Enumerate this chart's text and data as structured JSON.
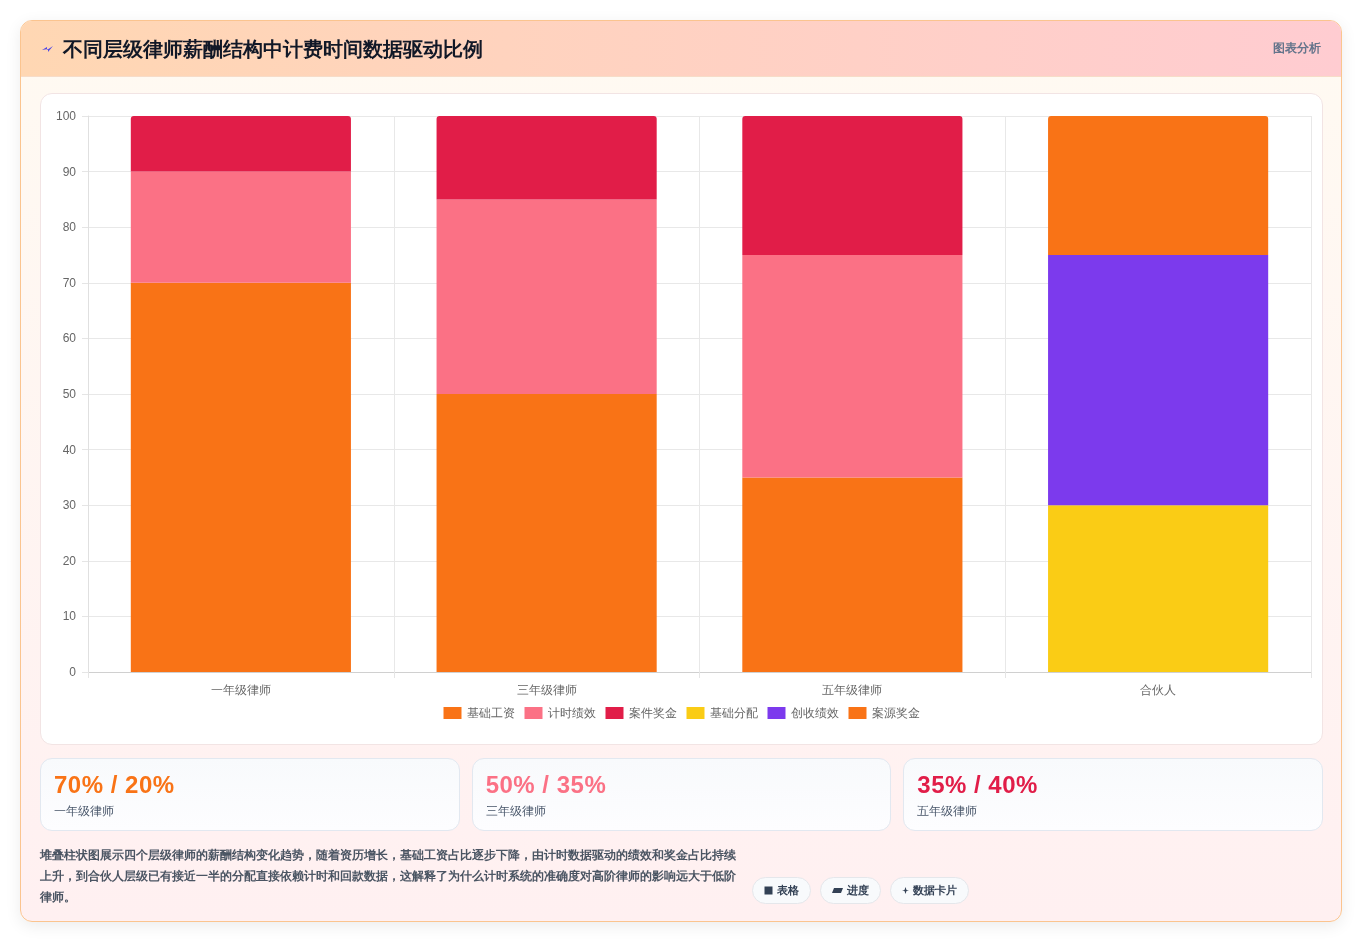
{
  "chart_data": [
    {
      "type": "bar",
      "title": "不同层级律师薪酬结构中计费时间数据驱动比例",
      "subtitle": "图表分析",
      "categories": [
        "一年级律师",
        "三年级律师",
        "五年级律师",
        "合伙人"
      ],
      "stacked": true,
      "series": [
        {
          "name": "基础工资",
          "color": "#f97316",
          "values": [
            70,
            50,
            35,
            null
          ]
        },
        {
          "name": "计时绩效",
          "color": "#fb7185",
          "values": [
            20,
            35,
            40,
            null
          ]
        },
        {
          "name": "案件奖金",
          "color": "#e11d48",
          "values": [
            10,
            15,
            25,
            null
          ]
        },
        {
          "name": "基础分配",
          "color": "#facc15",
          "values": [
            null,
            null,
            null,
            30
          ]
        },
        {
          "name": "创收绩效",
          "color": "#7c3aed",
          "values": [
            null,
            null,
            null,
            45
          ]
        },
        {
          "name": "案源奖金",
          "color": "#f97316",
          "values": [
            null,
            null,
            null,
            25
          ]
        }
      ],
      "ylim": [
        0,
        100
      ],
      "yticks": [
        0,
        10,
        20,
        30,
        40,
        50,
        60,
        70,
        80,
        90,
        100
      ],
      "grid": true,
      "legend": "bottom",
      "annotations": [
        "堆叠柱状图展示四个层级律师的薪酬结构变化趋势，随着资历增长，基础工资占比逐步下降，由计时数据驱动的绩效和奖金占比持续上升，到合伙人层级已有接近一半的分配直接依赖计时和回款数据，这解释了为什么计时系统的准确度对高阶律师的影响远大于低阶律师。",
        "表格",
        "进度",
        "数据卡片"
      ]
    },
    {
      "type": "other",
      "title": "70% / 20%",
      "subtitle": "一年级律师",
      "color": "#f97316"
    },
    {
      "type": "other",
      "title": "50% / 35%",
      "subtitle": "三年级律师",
      "color": "#fb7185"
    },
    {
      "type": "other",
      "title": "35% / 40%",
      "subtitle": "五年级律师",
      "color": "#e11d48"
    }
  ]
}
